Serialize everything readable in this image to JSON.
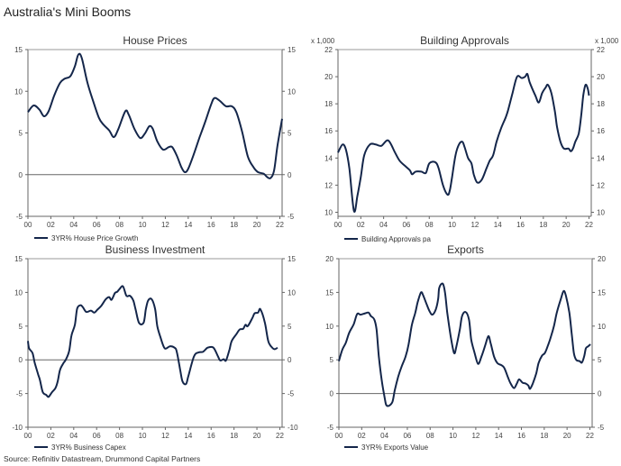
{
  "title": "Australia's Mini Booms",
  "source": "Source: Refinitiv Datastream, Drummond Capital Partners",
  "line_color": "#14264a",
  "chart_data": [
    {
      "type": "line",
      "title": "House Prices",
      "unit_label": "",
      "legend": "3YR% House Price Growth",
      "xlim": [
        2000,
        2022.2
      ],
      "ylim": [
        -5,
        15
      ],
      "yticks": [
        -5,
        0,
        5,
        10,
        15
      ],
      "xticks": [
        2000,
        2002,
        2004,
        2006,
        2008,
        2010,
        2012,
        2014,
        2016,
        2018,
        2020,
        2022
      ],
      "xtick_labels": [
        "00",
        "02",
        "04",
        "06",
        "08",
        "10",
        "12",
        "14",
        "16",
        "18",
        "20",
        "22"
      ],
      "zero_line": true,
      "x": [
        2000,
        2000.5,
        2001,
        2001.4,
        2001.8,
        2002.3,
        2002.8,
        2003.2,
        2003.7,
        2004.1,
        2004.4,
        2004.7,
        2005.2,
        2005.7,
        2006.2,
        2006.6,
        2007.1,
        2007.5,
        2007.9,
        2008.5,
        2008.8,
        2009.3,
        2009.8,
        2010.2,
        2010.6,
        2010.9,
        2011.3,
        2011.8,
        2012.3,
        2012.6,
        2013.0,
        2013.4,
        2013.7,
        2014.0,
        2014.5,
        2015.0,
        2015.5,
        2016.0,
        2016.3,
        2016.8,
        2017.3,
        2017.8,
        2018.2,
        2018.7,
        2019.2,
        2019.7,
        2020.1,
        2020.6,
        2020.9,
        2021.2,
        2021.5,
        2021.8,
        2022.2
      ],
      "y": [
        7.5,
        8.3,
        7.8,
        7.0,
        7.6,
        9.5,
        11.0,
        11.5,
        11.8,
        13.0,
        14.4,
        14.0,
        11.0,
        8.8,
        6.8,
        6.0,
        5.3,
        4.5,
        5.5,
        7.6,
        7.2,
        5.5,
        4.4,
        4.9,
        5.8,
        5.5,
        4.0,
        3.0,
        3.3,
        3.3,
        2.3,
        0.9,
        0.3,
        0.7,
        2.5,
        4.5,
        6.4,
        8.4,
        9.2,
        8.8,
        8.2,
        8.2,
        7.5,
        5.2,
        2.2,
        0.9,
        0.3,
        0.1,
        -0.3,
        -0.4,
        0.5,
        3.5,
        6.7
      ]
    },
    {
      "type": "line",
      "title": "Building Approvals",
      "unit_label": "x 1,000",
      "legend": "Building Approvals pa",
      "xlim": [
        2000,
        2022.2
      ],
      "ylim": [
        9.7,
        22
      ],
      "yticks": [
        10,
        12,
        14,
        16,
        18,
        20,
        22
      ],
      "xticks": [
        2000,
        2002,
        2004,
        2006,
        2008,
        2010,
        2012,
        2014,
        2016,
        2018,
        2020,
        2022
      ],
      "xtick_labels": [
        "00",
        "02",
        "04",
        "06",
        "08",
        "10",
        "12",
        "14",
        "16",
        "18",
        "20",
        "22"
      ],
      "zero_line": false,
      "x": [
        2000,
        2000.4,
        2000.7,
        2001.0,
        2001.4,
        2001.7,
        2002.0,
        2002.3,
        2002.8,
        2003.3,
        2003.8,
        2004.4,
        2005.0,
        2005.4,
        2005.9,
        2006.3,
        2006.5,
        2006.8,
        2007.3,
        2007.7,
        2008.0,
        2008.5,
        2008.8,
        2009.2,
        2009.6,
        2009.8,
        2010.0,
        2010.3,
        2010.6,
        2010.9,
        2011.1,
        2011.4,
        2011.7,
        2011.9,
        2012.2,
        2012.6,
        2013.0,
        2013.3,
        2013.6,
        2013.9,
        2014.3,
        2014.7,
        2014.9,
        2015.3,
        2015.7,
        2016.1,
        2016.4,
        2016.6,
        2016.8,
        2017.3,
        2017.6,
        2017.9,
        2018.2,
        2018.4,
        2018.7,
        2019.0,
        2019.2,
        2019.5,
        2019.8,
        2020.2,
        2020.4,
        2020.6,
        2020.8,
        2021.1,
        2021.3,
        2021.5,
        2021.7,
        2021.9,
        2022.0
      ],
      "y": [
        14.4,
        15.0,
        14.6,
        13.2,
        10.1,
        11.2,
        12.6,
        14.2,
        15.0,
        15.0,
        14.9,
        15.3,
        14.4,
        13.8,
        13.4,
        13.1,
        12.8,
        13.0,
        13.0,
        12.9,
        13.6,
        13.7,
        13.3,
        12.0,
        11.3,
        11.6,
        12.6,
        14.2,
        15.0,
        15.2,
        14.8,
        14.0,
        13.6,
        12.8,
        12.2,
        12.4,
        13.2,
        13.8,
        14.2,
        15.2,
        16.2,
        17.0,
        17.5,
        18.8,
        20.0,
        19.9,
        20.0,
        20.2,
        19.6,
        18.6,
        18.1,
        18.8,
        19.2,
        19.4,
        18.8,
        17.5,
        16.3,
        15.2,
        14.7,
        14.7,
        14.5,
        14.7,
        15.2,
        15.8,
        17.0,
        18.6,
        19.4,
        19.1,
        18.6
      ]
    },
    {
      "type": "line",
      "title": "Business Investment",
      "unit_label": "",
      "legend": "3YR% Business Capex",
      "xlim": [
        2000,
        2022.2
      ],
      "ylim": [
        -10,
        15
      ],
      "yticks": [
        -10,
        -5,
        0,
        5,
        10,
        15
      ],
      "xticks": [
        2000,
        2002,
        2004,
        2006,
        2008,
        2010,
        2012,
        2014,
        2016,
        2018,
        2020,
        2022
      ],
      "xtick_labels": [
        "00",
        "02",
        "04",
        "06",
        "08",
        "10",
        "12",
        "14",
        "16",
        "18",
        "20",
        "22"
      ],
      "zero_line": true,
      "x": [
        2000,
        2000.1,
        2000.4,
        2000.6,
        2000.9,
        2001.05,
        2001.3,
        2001.6,
        2001.8,
        2002.1,
        2002.4,
        2002.6,
        2002.8,
        2003.1,
        2003.3,
        2003.6,
        2003.8,
        2004.1,
        2004.3,
        2004.6,
        2004.8,
        2005.1,
        2005.5,
        2005.8,
        2006.1,
        2006.4,
        2006.8,
        2007.1,
        2007.3,
        2007.6,
        2007.8,
        2008.0,
        2008.3,
        2008.6,
        2008.9,
        2009.2,
        2009.4,
        2009.7,
        2010.1,
        2010.3,
        2010.5,
        2010.8,
        2011.1,
        2011.3,
        2011.6,
        2011.9,
        2012.1,
        2012.4,
        2012.8,
        2013.0,
        2013.3,
        2013.5,
        2013.8,
        2014.0,
        2014.5,
        2014.9,
        2015.3,
        2015.7,
        2016.2,
        2016.6,
        2016.8,
        2017.1,
        2017.3,
        2017.6,
        2017.8,
        2018.2,
        2018.5,
        2018.8,
        2019.0,
        2019.2,
        2019.6,
        2019.8,
        2020.1,
        2020.3,
        2020.7,
        2021.0,
        2021.4,
        2021.6,
        2021.8
      ],
      "y": [
        2.8,
        1.7,
        1.0,
        -0.5,
        -2.2,
        -3.0,
        -4.8,
        -5.2,
        -5.5,
        -4.8,
        -4.2,
        -3.2,
        -1.5,
        -0.5,
        0,
        1.3,
        3.6,
        5.2,
        7.6,
        8.1,
        7.8,
        7.1,
        7.3,
        7.0,
        7.5,
        8.0,
        9.0,
        9.3,
        8.9,
        9.9,
        10.1,
        10.5,
        10.9,
        9.5,
        9.5,
        8.8,
        7.5,
        5.5,
        5.5,
        7.5,
        8.8,
        9.0,
        7.6,
        5.0,
        3.2,
        1.8,
        1.7,
        2.0,
        1.8,
        1.2,
        -1.5,
        -3.2,
        -3.6,
        -2.5,
        0.5,
        1.1,
        1.2,
        1.8,
        1.8,
        0.5,
        -0.1,
        0.1,
        -0.1,
        1.5,
        2.8,
        3.8,
        4.5,
        4.6,
        5.2,
        5.0,
        6.2,
        6.9,
        7.0,
        7.5,
        5.5,
        2.7,
        1.7,
        1.6,
        1.8
      ]
    },
    {
      "type": "line",
      "title": "Exports",
      "unit_label": "",
      "legend": "3YR% Exports Value",
      "xlim": [
        2000,
        2022.2
      ],
      "ylim": [
        -5,
        20
      ],
      "yticks": [
        -5,
        0,
        5,
        10,
        15,
        20
      ],
      "xticks": [
        2000,
        2002,
        2004,
        2006,
        2008,
        2010,
        2012,
        2014,
        2016,
        2018,
        2020,
        2022
      ],
      "xtick_labels": [
        "00",
        "02",
        "04",
        "06",
        "08",
        "10",
        "12",
        "14",
        "16",
        "18",
        "20",
        "22"
      ],
      "zero_line": true,
      "x": [
        2000,
        2000.3,
        2000.6,
        2000.9,
        2001.3,
        2001.6,
        2001.9,
        2002.3,
        2002.6,
        2002.8,
        2003.1,
        2003.3,
        2003.5,
        2003.75,
        2004.0,
        2004.15,
        2004.4,
        2004.7,
        2004.9,
        2005.2,
        2005.5,
        2005.85,
        2006.1,
        2006.4,
        2006.7,
        2006.9,
        2007.2,
        2007.4,
        2007.7,
        2007.95,
        2008.2,
        2008.5,
        2008.7,
        2008.8,
        2009.1,
        2009.3,
        2009.5,
        2009.8,
        2010.1,
        2010.3,
        2010.6,
        2010.8,
        2011.1,
        2011.4,
        2011.6,
        2011.9,
        2012.2,
        2012.5,
        2012.8,
        2013.1,
        2013.3,
        2013.6,
        2013.9,
        2014.25,
        2014.5,
        2014.8,
        2015.05,
        2015.35,
        2015.6,
        2015.8,
        2016.1,
        2016.35,
        2016.6,
        2016.75,
        2017.0,
        2017.3,
        2017.5,
        2017.8,
        2018.05,
        2018.3,
        2018.6,
        2018.85,
        2019.1,
        2019.45,
        2019.7,
        2019.9,
        2020.2,
        2020.4,
        2020.6,
        2020.8,
        2021.1,
        2021.3,
        2021.5,
        2021.65,
        2021.85,
        2022.05
      ],
      "y": [
        4.8,
        6.5,
        7.5,
        9.0,
        10.3,
        11.8,
        11.7,
        11.9,
        12.0,
        11.5,
        11.0,
        9.5,
        5.5,
        2.0,
        -0.5,
        -1.7,
        -1.8,
        -1.2,
        0.5,
        2.5,
        4.0,
        5.5,
        7.2,
        10.2,
        12.0,
        13.5,
        15.0,
        14.5,
        13.2,
        12.2,
        11.7,
        12.5,
        14.0,
        15.7,
        16.3,
        15.0,
        12.0,
        8.5,
        6.0,
        7.0,
        9.5,
        11.5,
        12.1,
        11.0,
        8.0,
        6.0,
        4.4,
        5.5,
        7.0,
        8.5,
        7.5,
        5.5,
        4.5,
        4.2,
        3.8,
        2.5,
        1.5,
        0.8,
        1.5,
        2.1,
        1.6,
        1.5,
        1.2,
        0.7,
        1.5,
        3.0,
        4.5,
        5.6,
        6.0,
        7.0,
        8.5,
        10.0,
        12.0,
        14.0,
        15.2,
        14.5,
        12.0,
        9.0,
        6.0,
        5.0,
        4.8,
        4.6,
        5.5,
        6.7,
        7.0,
        7.3
      ]
    }
  ]
}
